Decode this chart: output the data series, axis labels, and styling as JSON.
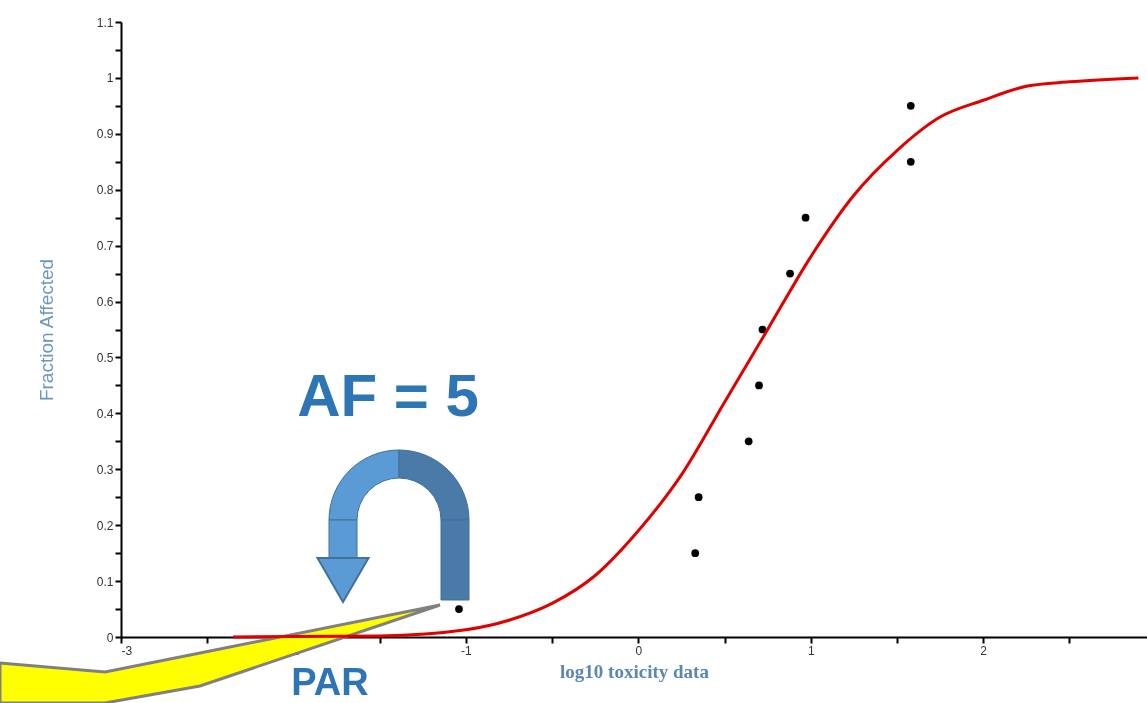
{
  "chart_data": {
    "type": "scatter",
    "xlabel": "log10 toxicity data",
    "ylabel": "Fraction Affected",
    "xlim": [
      -3,
      2.95
    ],
    "ylim": [
      0,
      1.1
    ],
    "xticks": [
      -3,
      {
        "value": -2.5,
        "label": null
      },
      -2,
      {
        "value": -1.5,
        "label": null
      },
      -1,
      {
        "value": -0.5,
        "label": null
      },
      0,
      {
        "value": 0.5,
        "label": null
      },
      1,
      {
        "value": 1.5,
        "label": null
      },
      2,
      {
        "value": 2.5,
        "label": null
      }
    ],
    "yticks": [
      0,
      {
        "value": 0.05,
        "label": null
      },
      0.1,
      {
        "value": 0.15,
        "label": null
      },
      0.2,
      {
        "value": 0.25,
        "label": null
      },
      0.3,
      {
        "value": 0.35,
        "label": null
      },
      0.4,
      {
        "value": 0.45,
        "label": null
      },
      0.5,
      {
        "value": 0.55,
        "label": null
      },
      0.6,
      {
        "value": 0.65,
        "label": null
      },
      0.7,
      {
        "value": 0.75,
        "label": null
      },
      0.8,
      {
        "value": 0.85,
        "label": null
      },
      0.9,
      {
        "value": 0.95,
        "label": null
      },
      1,
      {
        "value": 1.05,
        "label": null
      },
      1.1
    ],
    "grid": false,
    "marker": "circle",
    "series": [
      {
        "type": "scatter",
        "color": "#000000",
        "x": [
          -1.04,
          0.33,
          0.35,
          0.64,
          0.7,
          0.72,
          0.88,
          0.97,
          1.58,
          1.58
        ],
        "values": [
          0.05,
          0.15,
          0.25,
          0.35,
          0.45,
          0.55,
          0.65,
          0.75,
          0.85,
          0.95
        ]
      },
      {
        "type": "line",
        "color": "#e00000",
        "marker": "none",
        "x": [
          -2.35,
          -1.5,
          -1,
          -0.75,
          -0.5,
          -0.25,
          0,
          0.25,
          0.5,
          0.75,
          1,
          1.25,
          1.5,
          1.75,
          2,
          2.25,
          2.5,
          2.9
        ],
        "values": [
          0,
          0.002,
          0.013,
          0.03,
          0.06,
          0.11,
          0.19,
          0.29,
          0.42,
          0.55,
          0.68,
          0.79,
          0.87,
          0.93,
          0.96,
          0.985,
          0.993,
          1
        ]
      }
    ],
    "annotations": [
      "AF = 5",
      "PAR"
    ]
  }
}
